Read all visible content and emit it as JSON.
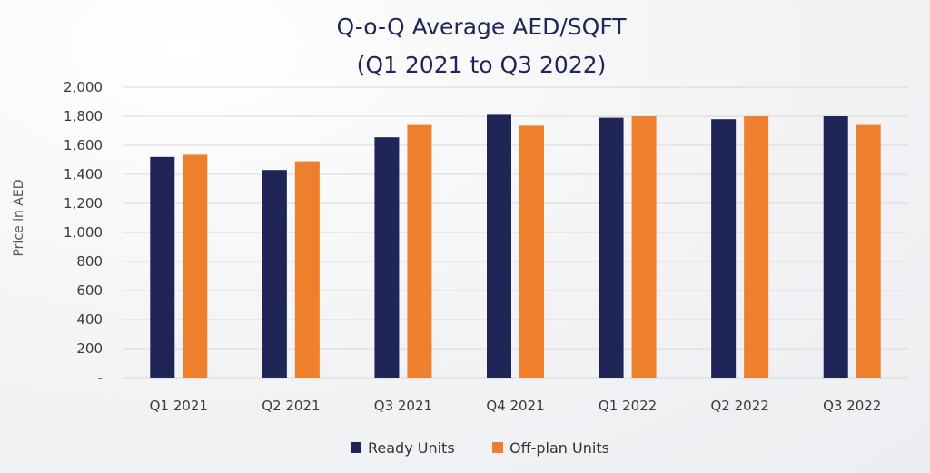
{
  "chart_data": {
    "type": "bar",
    "title": [
      "Q-o-Q Average AED/SQFT",
      "(Q1 2021 to Q3 2022)"
    ],
    "xlabel": "",
    "ylabel": "Price in AED",
    "ylim": [
      0,
      2000
    ],
    "yticks": [
      0,
      200,
      400,
      600,
      800,
      1000,
      1200,
      1400,
      1600,
      1800,
      2000
    ],
    "ytick_labels": [
      "-",
      "200",
      "400",
      "600",
      "800",
      "1,000",
      "1,200",
      "1,400",
      "1,600",
      "1,800",
      "2,000"
    ],
    "categories": [
      "Q1 2021",
      "Q2 2021",
      "Q3 2021",
      "Q4 2021",
      "Q1 2022",
      "Q2 2022",
      "Q3 2022"
    ],
    "series": [
      {
        "name": "Ready Units",
        "color": "#1f2556",
        "values": [
          1520,
          1430,
          1655,
          1810,
          1790,
          1780,
          1800
        ]
      },
      {
        "name": "Off-plan Units",
        "color": "#ee7f2d",
        "values": [
          1535,
          1490,
          1740,
          1735,
          1800,
          1800,
          1740
        ]
      }
    ],
    "grid": true,
    "legend_position": "bottom"
  }
}
